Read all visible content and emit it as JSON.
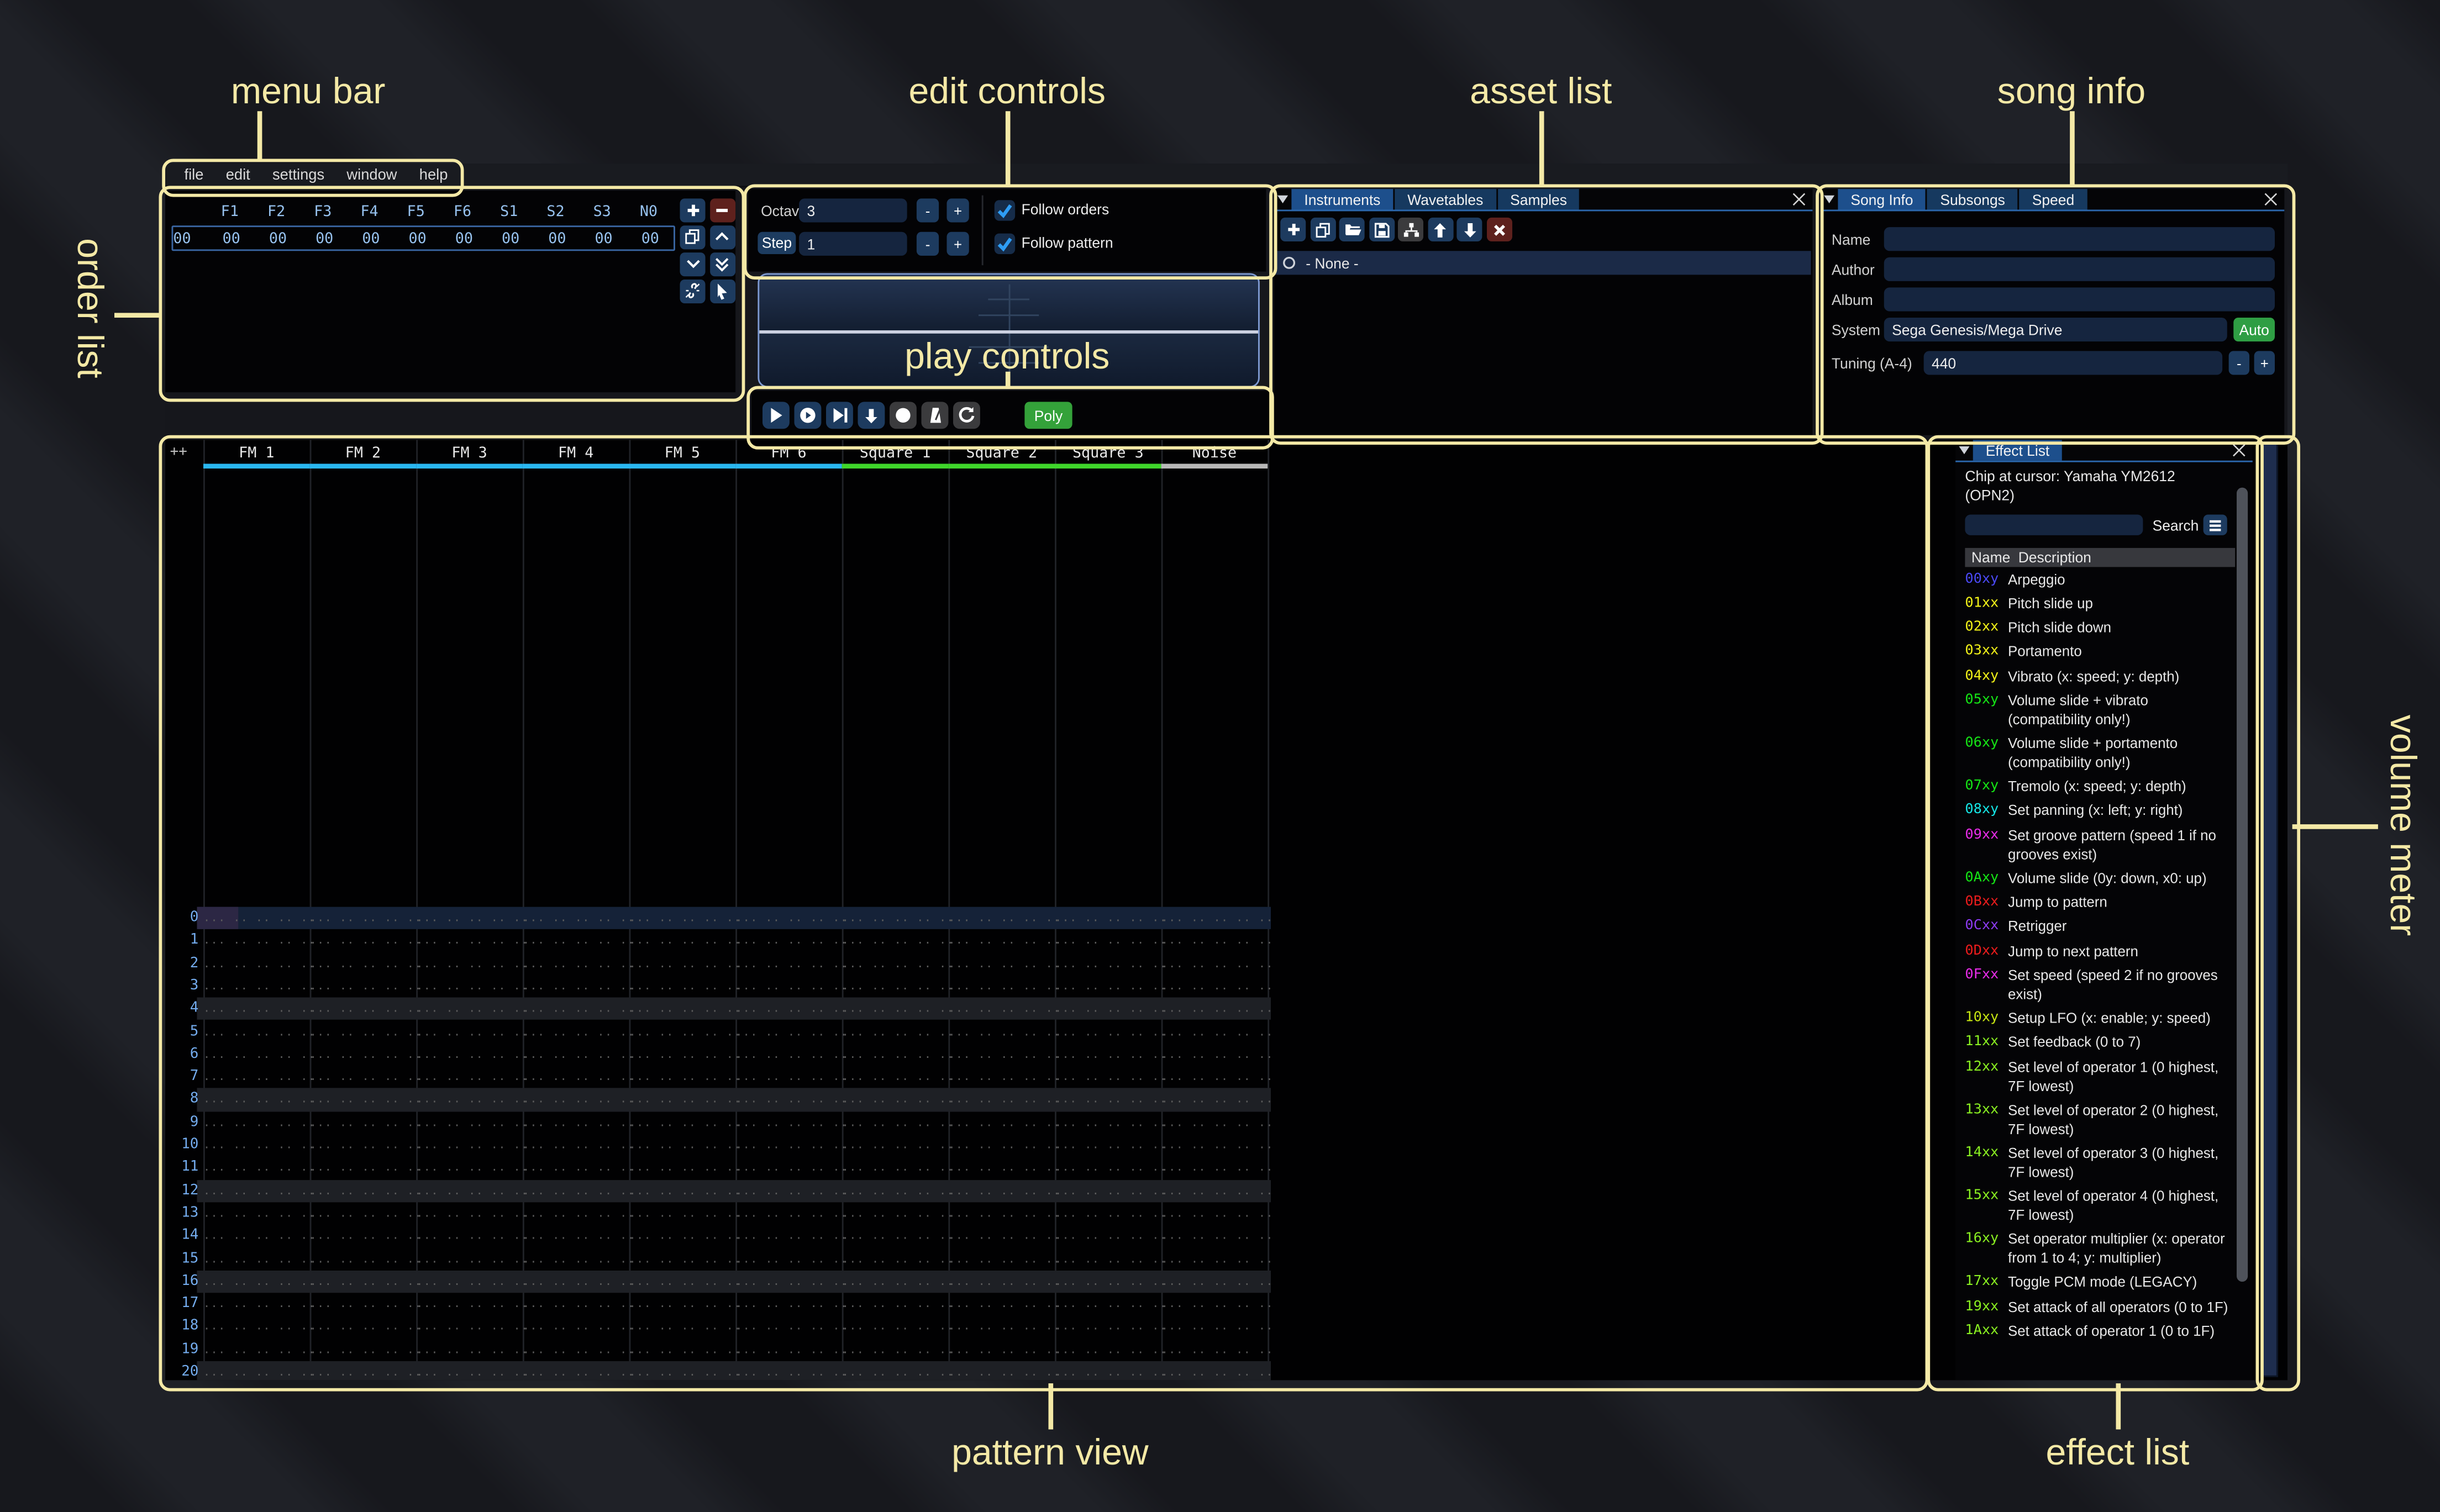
{
  "annotations": {
    "color": "#f4e9a6",
    "menu_bar": "menu bar",
    "edit_controls": "edit controls",
    "asset_list": "asset list",
    "song_info": "song info",
    "order_list": "order list",
    "play_controls": "play controls",
    "pattern_view": "pattern view",
    "volume_meter": "volume meter",
    "effect_list": "effect list"
  },
  "menu": {
    "items": [
      "file",
      "edit",
      "settings",
      "window",
      "help"
    ]
  },
  "order_list": {
    "columns": [
      "F1",
      "F2",
      "F3",
      "F4",
      "F5",
      "F6",
      "S1",
      "S2",
      "S3",
      "N0"
    ],
    "row_index": "00",
    "row_values": [
      "00",
      "00",
      "00",
      "00",
      "00",
      "00",
      "00",
      "00",
      "00",
      "00"
    ],
    "buttons": [
      {
        "icon": "plus-icon",
        "style": "blue"
      },
      {
        "icon": "minus-icon",
        "style": "red"
      },
      {
        "icon": "duplicate-icon",
        "style": "blue"
      },
      {
        "icon": "chevron-up-icon",
        "style": "blue"
      },
      {
        "icon": "chevron-down-icon",
        "style": "blue"
      },
      {
        "icon": "double-chevron-down-icon",
        "style": "blue"
      },
      {
        "icon": "deep-clone-icon",
        "style": "blue"
      },
      {
        "icon": "cursor-mode-icon",
        "style": "blue"
      }
    ]
  },
  "edit_controls": {
    "octave_label": "Octave",
    "octave_value": "3",
    "step_label": "Step",
    "step_value": "1",
    "minus_label": "-",
    "plus_label": "+",
    "follow_orders_label": "Follow orders",
    "follow_pattern_label": "Follow pattern"
  },
  "play_controls": {
    "buttons": [
      {
        "icon": "play-icon",
        "style": "blue"
      },
      {
        "icon": "play-circle-icon",
        "style": "blue"
      },
      {
        "icon": "play-row-icon",
        "style": "blue"
      },
      {
        "icon": "step-down-icon",
        "style": "blue"
      },
      {
        "icon": "stop-icon",
        "style": "gray"
      },
      {
        "icon": "metronome-icon",
        "style": "gray"
      },
      {
        "icon": "repeat-icon",
        "style": "gray"
      }
    ],
    "poly_label": "Poly",
    "poly_color": "#34a23a"
  },
  "asset_list": {
    "tabs": [
      {
        "label": "Instruments",
        "active": true
      },
      {
        "label": "Wavetables",
        "active": false
      },
      {
        "label": "Samples",
        "active": false
      }
    ],
    "toolbar": [
      {
        "icon": "plus-icon",
        "style": "blue"
      },
      {
        "icon": "duplicate-icon",
        "style": "blue"
      },
      {
        "icon": "open-folder-icon",
        "style": "blue"
      },
      {
        "icon": "save-icon",
        "style": "blue"
      },
      {
        "icon": "tree-view-icon",
        "style": "gray"
      },
      {
        "icon": "move-up-icon",
        "style": "blue"
      },
      {
        "icon": "move-down-icon",
        "style": "blue"
      },
      {
        "icon": "delete-icon",
        "style": "red"
      }
    ],
    "selected_item": "- None -"
  },
  "song_info": {
    "tabs": [
      {
        "label": "Song Info",
        "active": true
      },
      {
        "label": "Subsongs",
        "active": false
      },
      {
        "label": "Speed",
        "active": false
      }
    ],
    "name_label": "Name",
    "name_value": "",
    "author_label": "Author",
    "author_value": "",
    "album_label": "Album",
    "album_value": "",
    "system_label": "System",
    "system_value": "Sega Genesis/Mega Drive",
    "auto_label": "Auto",
    "auto_color": "#2f9e44",
    "tuning_label": "Tuning (A-4)",
    "tuning_value": "440",
    "minus_label": "-",
    "plus_label": "+"
  },
  "pattern": {
    "corner": "++",
    "channels": [
      {
        "name": "FM 1",
        "color": "#2ab7f1"
      },
      {
        "name": "FM 2",
        "color": "#2ab7f1"
      },
      {
        "name": "FM 3",
        "color": "#2ab7f1"
      },
      {
        "name": "FM 4",
        "color": "#2ab7f1"
      },
      {
        "name": "FM 5",
        "color": "#2ab7f1"
      },
      {
        "name": "FM 6",
        "color": "#2ab7f1"
      },
      {
        "name": "Square 1",
        "color": "#3fd62b"
      },
      {
        "name": "Square 2",
        "color": "#3fd62b"
      },
      {
        "name": "Square 3",
        "color": "#3fd62b"
      },
      {
        "name": "Noise",
        "color": "#b8b8b8"
      }
    ],
    "row_count": 21,
    "empty_cell": "... .. .. .. ..",
    "selected_row": 0,
    "beat_interval": 4
  },
  "effect_list": {
    "tab": "Effect List",
    "chip_text": "Chip at cursor: Yamaha YM2612 (OPN2)",
    "search_value": "",
    "search_label": "Search",
    "name_col": "Name",
    "desc_col": "Description",
    "effects": [
      {
        "code": "00xy",
        "color": "#4a49f5",
        "desc": "Arpeggio"
      },
      {
        "code": "01xx",
        "color": "#f2f218",
        "desc": "Pitch slide up"
      },
      {
        "code": "02xx",
        "color": "#f2f218",
        "desc": "Pitch slide down"
      },
      {
        "code": "03xx",
        "color": "#f2f218",
        "desc": "Portamento"
      },
      {
        "code": "04xy",
        "color": "#f2f218",
        "desc": "Vibrato (x: speed; y: depth)"
      },
      {
        "code": "05xy",
        "color": "#15e615",
        "desc": "Volume slide + vibrato (compatibility only!)"
      },
      {
        "code": "06xy",
        "color": "#15e615",
        "desc": "Volume slide + portamento (compatibility only!)"
      },
      {
        "code": "07xy",
        "color": "#15e615",
        "desc": "Tremolo (x: speed; y: depth)"
      },
      {
        "code": "08xy",
        "color": "#15e6e6",
        "desc": "Set panning (x: left; y: right)"
      },
      {
        "code": "09xx",
        "color": "#e92ce9",
        "desc": "Set groove pattern (speed 1 if no grooves exist)"
      },
      {
        "code": "0Axy",
        "color": "#15e615",
        "desc": "Volume slide (0y: down, x0: up)"
      },
      {
        "code": "0Bxx",
        "color": "#ed1c1c",
        "desc": "Jump to pattern"
      },
      {
        "code": "0Cxx",
        "color": "#8d3bf2",
        "desc": "Retrigger"
      },
      {
        "code": "0Dxx",
        "color": "#ed1c1c",
        "desc": "Jump to next pattern"
      },
      {
        "code": "0Fxx",
        "color": "#e92ce9",
        "desc": "Set speed (speed 2 if no grooves exist)"
      },
      {
        "code": "10xy",
        "color": "#c6e512",
        "desc": "Setup LFO (x: enable; y: speed)"
      },
      {
        "code": "11xx",
        "color": "#8af021",
        "desc": "Set feedback (0 to 7)"
      },
      {
        "code": "12xx",
        "color": "#8af021",
        "desc": "Set level of operator 1 (0 highest, 7F lowest)"
      },
      {
        "code": "13xx",
        "color": "#8af021",
        "desc": "Set level of operator 2 (0 highest, 7F lowest)"
      },
      {
        "code": "14xx",
        "color": "#8af021",
        "desc": "Set level of operator 3 (0 highest, 7F lowest)"
      },
      {
        "code": "15xx",
        "color": "#8af021",
        "desc": "Set level of operator 4 (0 highest, 7F lowest)"
      },
      {
        "code": "16xy",
        "color": "#8af021",
        "desc": "Set operator multiplier (x: operator from 1 to 4; y: multiplier)"
      },
      {
        "code": "17xx",
        "color": "#8af021",
        "desc": "Toggle PCM mode (LEGACY)"
      },
      {
        "code": "19xx",
        "color": "#8af021",
        "desc": "Set attack of all operators (0 to 1F)"
      },
      {
        "code": "1Axx",
        "color": "#8af021",
        "desc": "Set attack of operator 1 (0 to 1F)"
      }
    ]
  },
  "volume_meter": {
    "color": "#1e2d4e"
  }
}
